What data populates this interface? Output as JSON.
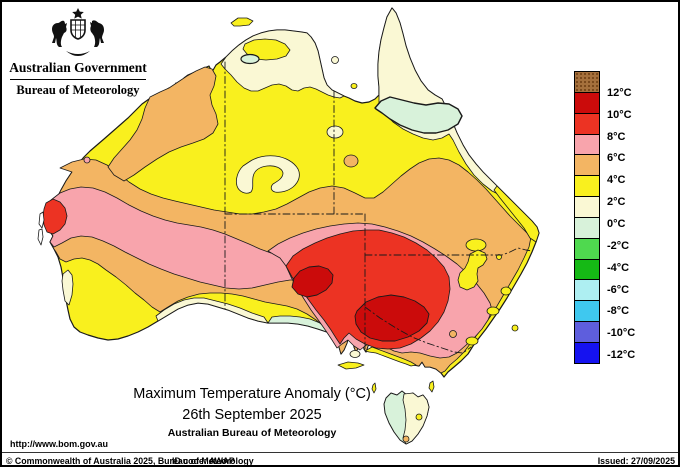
{
  "header": {
    "government_label": "Australian Government",
    "bureau_label": "Bureau of Meteorology"
  },
  "map_title": {
    "line1": "Maximum Temperature Anomaly (°C)",
    "line2": "26th September 2025",
    "line3": "Australian Bureau of Meteorology"
  },
  "legend": {
    "boundary_labels": [
      "12°C",
      "10°C",
      "8°C",
      "6°C",
      "4°C",
      "2°C",
      "0°C",
      "-2°C",
      "-4°C",
      "-6°C",
      "-8°C",
      "-10°C",
      "-12°C"
    ],
    "band_colors": [
      "#A5703C",
      "#CB0B0B",
      "#EC3323",
      "#F8A4AC",
      "#F3B563",
      "#F9F01E",
      "#FAF8D4",
      "#D8F2DA",
      "#4FD94F",
      "#15B915",
      "#AEEFF2",
      "#3FC8EF",
      "#5E5EDD",
      "#1512F0"
    ]
  },
  "map": {
    "palette": {
      "ocean": "#FFFFFF",
      "land_2_4": "#F9F01E",
      "anomaly_0_2": "#FAF8D4",
      "anomaly_neg2_0": "#D8F2DA",
      "anomaly_4_6": "#F3B563",
      "anomaly_6_8": "#F8A4AC",
      "anomaly_8_10": "#EC3323",
      "anomaly_10_12": "#CB0B0B",
      "contour": "#1a1a1a"
    }
  },
  "footer": {
    "url": "http://www.bom.gov.au",
    "copyright": "© Commonwealth of Australia 2025, Bureau of Meteorology",
    "id_code": "ID code: AWAP",
    "issued": "Issued: 27/09/2025"
  }
}
